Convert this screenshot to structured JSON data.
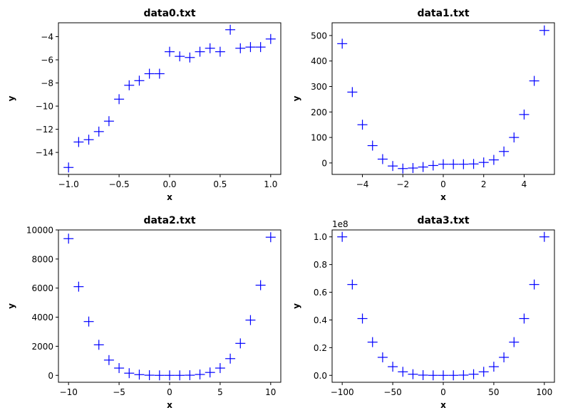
{
  "chart_data": [
    {
      "type": "scatter",
      "title": "data0.txt",
      "xlabel": "x",
      "ylabel": "y",
      "xlim": [
        -1.1,
        1.1
      ],
      "ylim": [
        -15.9,
        -2.8
      ],
      "xticks": [
        -1.0,
        -0.5,
        0.0,
        0.5,
        1.0
      ],
      "xtick_labels": [
        "−1.0",
        "−0.5",
        "0.0",
        "0.5",
        "1.0"
      ],
      "yticks": [
        -14,
        -12,
        -10,
        -8,
        -6,
        -4
      ],
      "ytick_labels": [
        "−14",
        "−12",
        "−10",
        "−8",
        "−6",
        "−4"
      ],
      "offset_label": "",
      "marker": "+",
      "color": "#0000ff",
      "grid": false,
      "x": [
        -1.0,
        -0.9,
        -0.8,
        -0.7,
        -0.6,
        -0.5,
        -0.4,
        -0.3,
        -0.2,
        -0.1,
        0.0,
        0.1,
        0.2,
        0.3,
        0.4,
        0.5,
        0.6,
        0.7,
        0.8,
        0.9,
        1.0
      ],
      "y": [
        -15.3,
        -13.1,
        -12.9,
        -12.2,
        -11.3,
        -9.4,
        -8.2,
        -7.8,
        -7.2,
        -7.2,
        -5.3,
        -5.7,
        -5.8,
        -5.3,
        -5.0,
        -5.3,
        -3.4,
        -5.0,
        -4.9,
        -4.9,
        -4.2
      ]
    },
    {
      "type": "scatter",
      "title": "data1.txt",
      "xlabel": "x",
      "ylabel": "y",
      "xlim": [
        -5.5,
        5.5
      ],
      "ylim": [
        -45,
        550
      ],
      "xticks": [
        -4,
        -2,
        0,
        2,
        4
      ],
      "xtick_labels": [
        "−4",
        "−2",
        "0",
        "2",
        "4"
      ],
      "yticks": [
        0,
        100,
        200,
        300,
        400,
        500
      ],
      "ytick_labels": [
        "0",
        "100",
        "200",
        "300",
        "400",
        "500"
      ],
      "offset_label": "",
      "marker": "+",
      "color": "#0000ff",
      "grid": false,
      "x": [
        -5.0,
        -4.5,
        -4.0,
        -3.5,
        -3.0,
        -2.5,
        -2.0,
        -1.5,
        -1.0,
        -0.5,
        0.0,
        0.5,
        1.0,
        1.5,
        2.0,
        2.5,
        3.0,
        3.5,
        4.0,
        4.5,
        5.0
      ],
      "y": [
        468,
        278,
        150,
        68,
        15,
        -12,
        -22,
        -20,
        -16,
        -10,
        -5,
        -5,
        -5,
        -4,
        2,
        12,
        45,
        100,
        190,
        322,
        520
      ]
    },
    {
      "type": "scatter",
      "title": "data2.txt",
      "xlabel": "x",
      "ylabel": "y",
      "xlim": [
        -11,
        11
      ],
      "ylim": [
        -476,
        10000
      ],
      "xticks": [
        -10,
        -5,
        0,
        5,
        10
      ],
      "xtick_labels": [
        "−10",
        "−5",
        "0",
        "5",
        "10"
      ],
      "yticks": [
        0,
        2000,
        4000,
        6000,
        8000,
        10000
      ],
      "ytick_labels": [
        "0",
        "2000",
        "4000",
        "6000",
        "8000",
        "10000"
      ],
      "offset_label": "",
      "marker": "+",
      "color": "#0000ff",
      "grid": false,
      "x": [
        -10,
        -9,
        -8,
        -7,
        -6,
        -5,
        -4,
        -3,
        -2,
        -1,
        0,
        1,
        2,
        3,
        4,
        5,
        6,
        7,
        8,
        9,
        10
      ],
      "y": [
        9400,
        6100,
        3700,
        2100,
        1050,
        500,
        150,
        50,
        10,
        0,
        0,
        0,
        10,
        60,
        200,
        500,
        1150,
        2200,
        3800,
        6200,
        9500
      ]
    },
    {
      "type": "scatter",
      "title": "data3.txt",
      "xlabel": "x",
      "ylabel": "y",
      "xlim": [
        -110,
        110
      ],
      "ylim": [
        -0.05,
        1.05
      ],
      "xticks": [
        -100,
        -50,
        0,
        50,
        100
      ],
      "xtick_labels": [
        "−100",
        "−50",
        "0",
        "50",
        "100"
      ],
      "yticks": [
        0.0,
        0.2,
        0.4,
        0.6,
        0.8,
        1.0
      ],
      "ytick_labels": [
        "0.0",
        "0.2",
        "0.4",
        "0.6",
        "0.8",
        "1.0"
      ],
      "offset_label": "1e8",
      "marker": "+",
      "color": "#0000ff",
      "grid": false,
      "x": [
        -100,
        -90,
        -80,
        -70,
        -60,
        -50,
        -40,
        -30,
        -20,
        -10,
        0,
        10,
        20,
        30,
        40,
        50,
        60,
        70,
        80,
        90,
        100
      ],
      "y": [
        1.0,
        0.656,
        0.41,
        0.24,
        0.13,
        0.0625,
        0.0256,
        0.0081,
        0.0016,
        0.0001,
        0.0,
        0.0001,
        0.0016,
        0.0081,
        0.0256,
        0.0625,
        0.13,
        0.24,
        0.41,
        0.656,
        1.0
      ]
    }
  ]
}
